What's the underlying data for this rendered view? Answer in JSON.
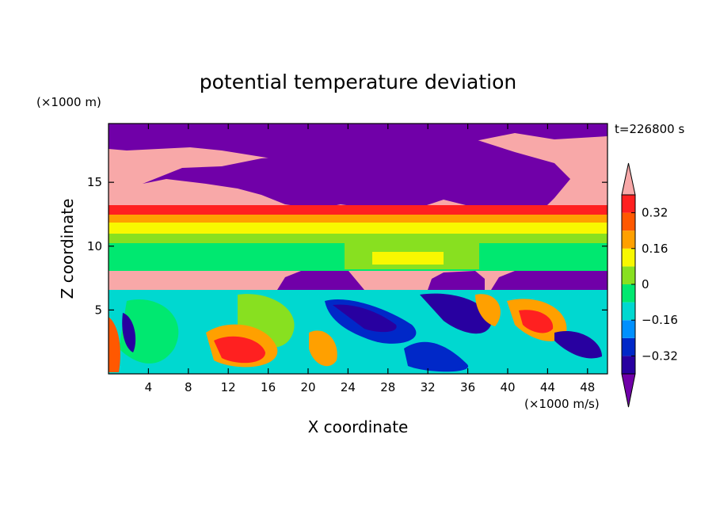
{
  "chart_data": {
    "type": "heatmap",
    "title": "potential temperature deviation",
    "xlabel": "X coordinate",
    "ylabel": "Z coordinate",
    "x_unit": "(×1000 m/s)",
    "y_unit": "(×1000 m)",
    "time_label": "t=226800 s",
    "xlim": [
      0,
      50
    ],
    "ylim": [
      0,
      19.6
    ],
    "x_ticks": [
      4,
      8,
      12,
      16,
      20,
      24,
      28,
      32,
      36,
      40,
      44,
      48
    ],
    "y_ticks": [
      5,
      10,
      15
    ],
    "colorbar": {
      "levels": [
        -0.4,
        -0.32,
        -0.24,
        -0.16,
        -0.08,
        0,
        0.08,
        0.16,
        0.24,
        0.32,
        0.4
      ],
      "tick_labels": [
        "0.32",
        "0.16",
        "0",
        "−0.16",
        "−0.32"
      ],
      "tick_values": [
        0.32,
        0.16,
        0,
        -0.16,
        -0.32
      ],
      "extend": "both",
      "colors": [
        "#7000a8",
        "#2800a0",
        "#0028c8",
        "#0090ff",
        "#00d8d0",
        "#00e870",
        "#88e020",
        "#f8f800",
        "#ffa000",
        "#ff5800",
        "#ff2020",
        "#f8a8a8"
      ]
    },
    "bands": [
      {
        "z0": 0,
        "z1": 6.6,
        "description": "turbulent mixed layer (values -0.4 to 0.4)"
      },
      {
        "z0": 6.6,
        "z1": 8.3,
        "value": "> 0.4 / < -0.4 alternating"
      },
      {
        "z0": 8.3,
        "z1": 11.0,
        "value": "-0.08 to 0"
      },
      {
        "z0": 11.0,
        "z1": 13.4,
        "value": "0.08 to 0.4"
      },
      {
        "z0": 13.4,
        "z1": 19.6,
        "value": "> 0.4 with < -0.4 patches"
      }
    ]
  }
}
